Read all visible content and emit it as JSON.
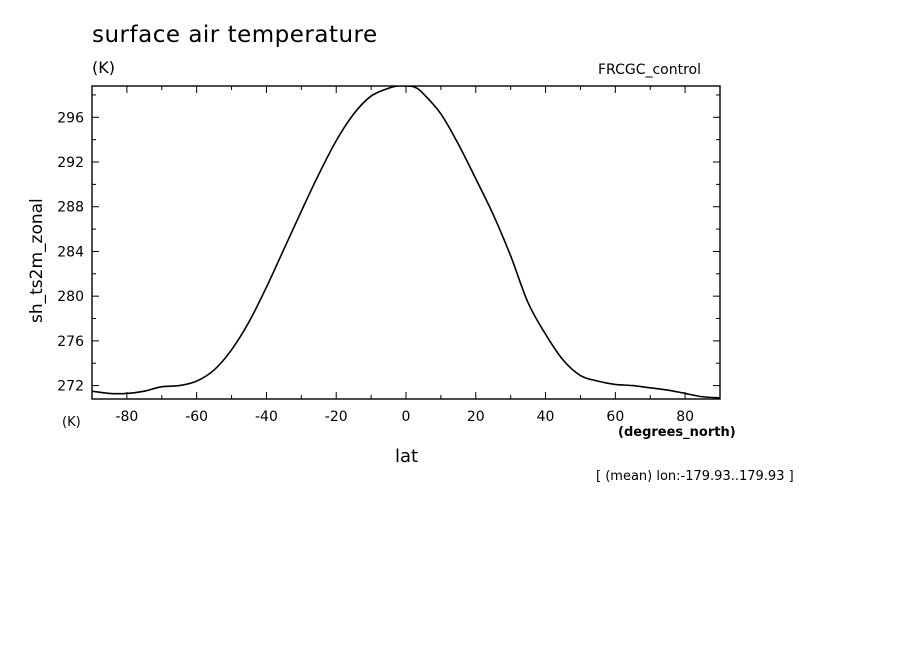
{
  "chart_data": {
    "type": "line",
    "title": "surface air temperature",
    "title_unit": "(K)",
    "run_label": "FRCGC_control",
    "ylabel": "sh_ts2m_zonal",
    "y_unit": "(K)",
    "xlabel": "lat",
    "x_unit": "(degrees_north)",
    "footnote": "[ (mean) lon:-179.93..179.93 ]",
    "xlim": [
      -90,
      90
    ],
    "ylim": [
      270.8,
      298.8
    ],
    "x_ticks": [
      -80,
      -60,
      -40,
      -20,
      0,
      20,
      40,
      60,
      80
    ],
    "x_tick_labels": [
      "-80",
      "-60",
      "-40",
      "-20",
      "0",
      "20",
      "40",
      "60",
      "80"
    ],
    "y_ticks": [
      272,
      276,
      280,
      284,
      288,
      292,
      296
    ],
    "y_tick_labels": [
      "272",
      "276",
      "280",
      "284",
      "288",
      "292",
      "296"
    ],
    "grid": false,
    "series": [
      {
        "x": [
          -90,
          -85,
          -80,
          -75,
          -70,
          -65,
          -60,
          -55,
          -50,
          -45,
          -40,
          -35,
          -30,
          -25,
          -20,
          -15,
          -10,
          -5,
          -2.5,
          0,
          2.5,
          5,
          10,
          15,
          20,
          25,
          30,
          35,
          40,
          45,
          50,
          55,
          60,
          65,
          70,
          75,
          80,
          85,
          90
        ],
        "y": [
          271.5,
          271.3,
          271.3,
          271.5,
          271.9,
          272.0,
          272.4,
          273.4,
          275.2,
          277.7,
          280.8,
          284.2,
          287.6,
          290.9,
          293.9,
          296.3,
          297.9,
          298.6,
          298.8,
          298.8,
          298.7,
          298.1,
          296.3,
          293.6,
          290.5,
          287.3,
          283.6,
          279.4,
          276.6,
          274.3,
          272.9,
          272.4,
          272.1,
          272.0,
          271.8,
          271.6,
          271.3,
          271.0,
          270.9
        ]
      }
    ]
  }
}
